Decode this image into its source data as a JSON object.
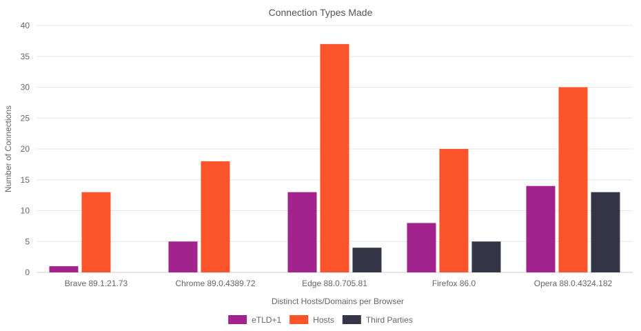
{
  "chart_data": {
    "type": "bar",
    "title": "Connection Types Made",
    "xlabel": "Distinct Hosts/Domains per Browser",
    "ylabel": "Number of Connections",
    "categories": [
      "Brave 89.1.21.73",
      "Chrome 89.0.4389.72",
      "Edge 88.0.705.81",
      "Firefox 86.0",
      "Opera 88.0.4324.182"
    ],
    "series": [
      {
        "name": "eTLD+1",
        "color": "#a2238e",
        "values": [
          1,
          5,
          13,
          8,
          14
        ]
      },
      {
        "name": "Hosts",
        "color": "#fb542b",
        "values": [
          13,
          18,
          37,
          20,
          30
        ]
      },
      {
        "name": "Third Parties",
        "color": "#343546",
        "values": [
          0,
          0,
          4,
          5,
          13
        ]
      }
    ],
    "ylim": [
      0,
      40
    ],
    "yticks": [
      0,
      5,
      10,
      15,
      20,
      25,
      30,
      35,
      40
    ],
    "grid": true,
    "legend_position": "bottom"
  }
}
